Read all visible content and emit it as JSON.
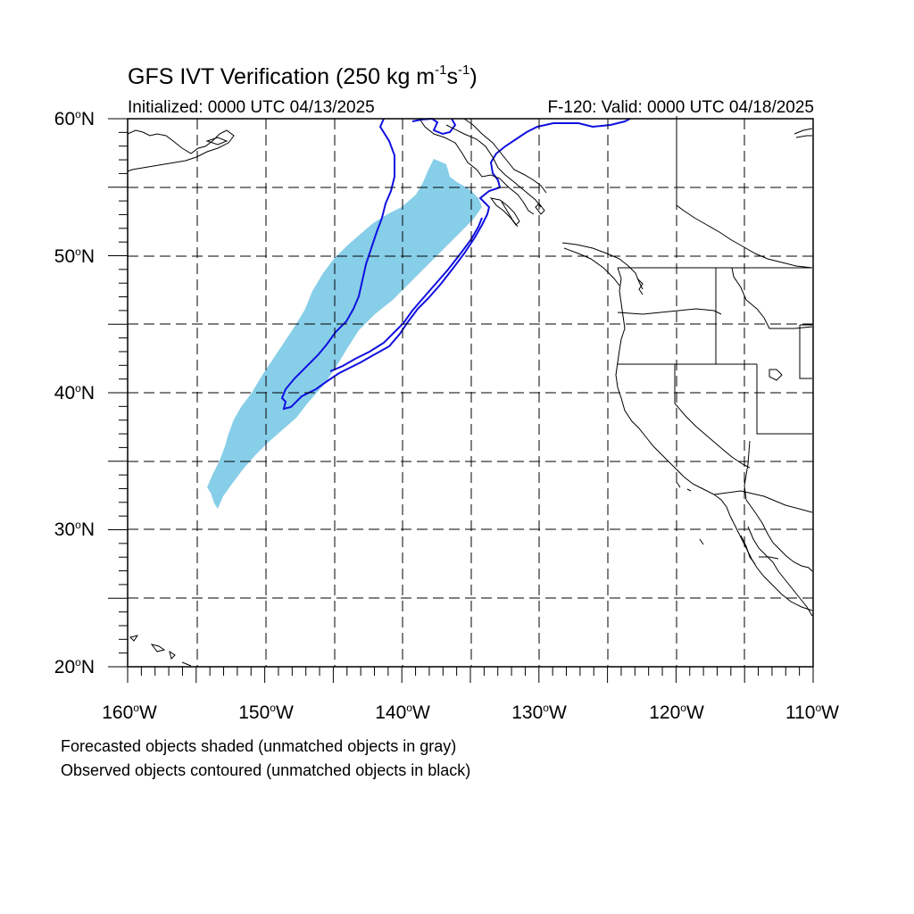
{
  "title": {
    "main": "GFS IVT Verification (250 kg m",
    "exp1": "-1",
    "mid": "s",
    "exp2": "-1",
    "end": ")"
  },
  "initialized": "Initialized: 0000 UTC 04/13/2025",
  "valid": "F-120: Valid: 0000 UTC 04/18/2025",
  "lat_labels": [
    "60",
    "50",
    "40",
    "30",
    "20"
  ],
  "lat_suffix": "N",
  "lon_labels": [
    "160",
    "150",
    "140",
    "130",
    "120",
    "110"
  ],
  "lon_suffix": "W",
  "degree_symbol": "o",
  "map_extent": {
    "lon": [
      -160,
      -110
    ],
    "lat": [
      20,
      60
    ]
  },
  "colors": {
    "forecast_fill": "#87CEE8",
    "observed_contour": "#1010E0",
    "coastline": "#000000",
    "grid": "#000000"
  },
  "notes": [
    "Forecasted objects shaded (unmatched objects in gray)",
    "Observed objects contoured (unmatched objects in black)"
  ]
}
